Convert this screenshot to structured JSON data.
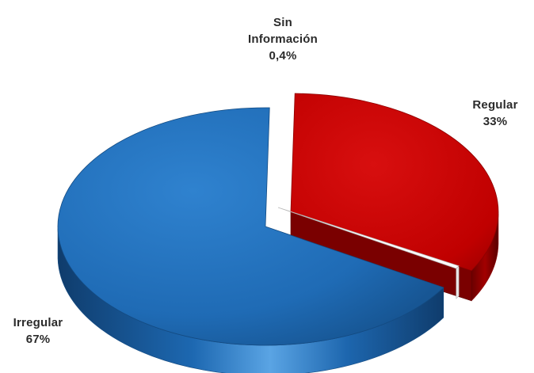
{
  "chart_data": {
    "type": "pie",
    "style": "3d-exploded",
    "title": "",
    "slices": [
      {
        "name": "Regular",
        "value": 33,
        "value_label": "33%",
        "color": "#c00000"
      },
      {
        "name": "Sin Información",
        "name_lines": [
          "Sin",
          "Información"
        ],
        "value": 0.4,
        "value_label": "0,4%",
        "color": "#ffffff"
      },
      {
        "name": "Irregular",
        "value": 67,
        "value_label": "67%",
        "color": "#1f6bb5"
      }
    ],
    "legend": "none"
  }
}
